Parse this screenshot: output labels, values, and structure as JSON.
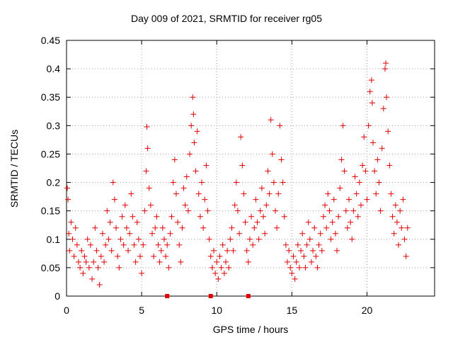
{
  "chart_data": {
    "type": "scatter",
    "title": "Day 009 of 2021, SRMTID for receiver rg05",
    "xlabel": "GPS time / hours",
    "ylabel": "SRMTID / TECUs",
    "xlim": [
      0,
      24.5
    ],
    "ylim": [
      0,
      0.45
    ],
    "xticks": [
      0,
      5,
      10,
      15,
      20
    ],
    "xtick_labels": [
      "0",
      "5",
      "10",
      "15",
      "20"
    ],
    "yticks": [
      0,
      0.05,
      0.1,
      0.15,
      0.2,
      0.25,
      0.3,
      0.35,
      0.4,
      0.45
    ],
    "ytick_labels": [
      "0",
      "0.05",
      "0.1",
      "0.15",
      "0.2",
      "0.25",
      "0.3",
      "0.35",
      "0.4",
      "0.45"
    ],
    "grid": true,
    "marker": "+",
    "color": "#e00000",
    "series": [
      {
        "name": "SRMTID",
        "points": [
          [
            0.05,
            0.19
          ],
          [
            0.1,
            0.17
          ],
          [
            0.15,
            0.11
          ],
          [
            0.2,
            0.08
          ],
          [
            0.3,
            0.13
          ],
          [
            0.4,
            0.1
          ],
          [
            0.5,
            0.07
          ],
          [
            0.6,
            0.12
          ],
          [
            0.7,
            0.09
          ],
          [
            0.8,
            0.06
          ],
          [
            0.9,
            0.05
          ],
          [
            1.0,
            0.08
          ],
          [
            1.1,
            0.04
          ],
          [
            1.2,
            0.07
          ],
          [
            1.3,
            0.06
          ],
          [
            1.4,
            0.1
          ],
          [
            1.5,
            0.05
          ],
          [
            1.6,
            0.09
          ],
          [
            1.7,
            0.03
          ],
          [
            1.8,
            0.06
          ],
          [
            1.9,
            0.12
          ],
          [
            2.0,
            0.08
          ],
          [
            2.1,
            0.05
          ],
          [
            2.2,
            0.02
          ],
          [
            2.3,
            0.07
          ],
          [
            2.4,
            0.11
          ],
          [
            2.5,
            0.06
          ],
          [
            2.6,
            0.09
          ],
          [
            2.7,
            0.15
          ],
          [
            2.8,
            0.1
          ],
          [
            2.9,
            0.13
          ],
          [
            3.0,
            0.08
          ],
          [
            3.1,
            0.2
          ],
          [
            3.2,
            0.17
          ],
          [
            3.3,
            0.12
          ],
          [
            3.4,
            0.07
          ],
          [
            3.5,
            0.05
          ],
          [
            3.6,
            0.1
          ],
          [
            3.7,
            0.14
          ],
          [
            3.8,
            0.09
          ],
          [
            3.9,
            0.16
          ],
          [
            4.0,
            0.12
          ],
          [
            4.1,
            0.08
          ],
          [
            4.2,
            0.11
          ],
          [
            4.3,
            0.18
          ],
          [
            4.4,
            0.14
          ],
          [
            4.5,
            0.09
          ],
          [
            4.6,
            0.06
          ],
          [
            4.7,
            0.13
          ],
          [
            4.8,
            0.1
          ],
          [
            4.9,
            0.07
          ],
          [
            5.0,
            0.04
          ],
          [
            5.1,
            0.09
          ],
          [
            5.2,
            0.15
          ],
          [
            5.3,
            0.22
          ],
          [
            5.35,
            0.298
          ],
          [
            5.4,
            0.26
          ],
          [
            5.5,
            0.19
          ],
          [
            5.6,
            0.16
          ],
          [
            5.7,
            0.11
          ],
          [
            5.8,
            0.07
          ],
          [
            5.9,
            0.12
          ],
          [
            6.0,
            0.14
          ],
          [
            6.1,
            0.09
          ],
          [
            6.2,
            0.06
          ],
          [
            6.3,
            0.08
          ],
          [
            6.4,
            0.12
          ],
          [
            6.5,
            0.1
          ],
          [
            6.6,
            0.07
          ],
          [
            6.7,
            0.09
          ],
          [
            6.8,
            0.05
          ],
          [
            6.9,
            0.11
          ],
          [
            7.0,
            0.14
          ],
          [
            7.1,
            0.2
          ],
          [
            7.2,
            0.24
          ],
          [
            7.3,
            0.18
          ],
          [
            7.4,
            0.13
          ],
          [
            7.5,
            0.09
          ],
          [
            7.6,
            0.06
          ],
          [
            7.7,
            0.12
          ],
          [
            7.8,
            0.19
          ],
          [
            7.9,
            0.16
          ],
          [
            8.0,
            0.21
          ],
          [
            8.1,
            0.15
          ],
          [
            8.2,
            0.25
          ],
          [
            8.3,
            0.3
          ],
          [
            8.4,
            0.35
          ],
          [
            8.45,
            0.32
          ],
          [
            8.5,
            0.27
          ],
          [
            8.6,
            0.22
          ],
          [
            8.7,
            0.29
          ],
          [
            8.8,
            0.18
          ],
          [
            8.9,
            0.14
          ],
          [
            9.0,
            0.2
          ],
          [
            9.1,
            0.12
          ],
          [
            9.2,
            0.17
          ],
          [
            9.3,
            0.23
          ],
          [
            9.4,
            0.15
          ],
          [
            9.5,
            0.1
          ],
          [
            9.6,
            0.07
          ],
          [
            9.7,
            0.05
          ],
          [
            9.8,
            0.08
          ],
          [
            9.9,
            0.04
          ],
          [
            10.0,
            0.06
          ],
          [
            10.1,
            0.03
          ],
          [
            10.2,
            0.07
          ],
          [
            10.3,
            0.05
          ],
          [
            10.4,
            0.09
          ],
          [
            10.5,
            0.04
          ],
          [
            10.6,
            0.06
          ],
          [
            10.7,
            0.08
          ],
          [
            10.8,
            0.05
          ],
          [
            10.9,
            0.1
          ],
          [
            11.0,
            0.12
          ],
          [
            11.1,
            0.08
          ],
          [
            11.2,
            0.16
          ],
          [
            11.3,
            0.2
          ],
          [
            11.4,
            0.15
          ],
          [
            11.5,
            0.11
          ],
          [
            11.6,
            0.28
          ],
          [
            11.7,
            0.23
          ],
          [
            11.8,
            0.18
          ],
          [
            11.9,
            0.13
          ],
          [
            12.0,
            0.08
          ],
          [
            12.1,
            0.06
          ],
          [
            12.2,
            0.1
          ],
          [
            12.3,
            0.14
          ],
          [
            12.4,
            0.09
          ],
          [
            12.5,
            0.12
          ],
          [
            12.6,
            0.17
          ],
          [
            12.7,
            0.13
          ],
          [
            12.8,
            0.1
          ],
          [
            12.9,
            0.15
          ],
          [
            13.0,
            0.19
          ],
          [
            13.1,
            0.14
          ],
          [
            13.2,
            0.11
          ],
          [
            13.3,
            0.16
          ],
          [
            13.4,
            0.22
          ],
          [
            13.5,
            0.18
          ],
          [
            13.6,
            0.31
          ],
          [
            13.7,
            0.25
          ],
          [
            13.8,
            0.2
          ],
          [
            13.9,
            0.15
          ],
          [
            14.0,
            0.12
          ],
          [
            14.1,
            0.18
          ],
          [
            14.2,
            0.3
          ],
          [
            14.3,
            0.24
          ],
          [
            14.4,
            0.2
          ],
          [
            14.5,
            0.14
          ],
          [
            14.6,
            0.09
          ],
          [
            14.7,
            0.06
          ],
          [
            14.8,
            0.08
          ],
          [
            14.9,
            0.05
          ],
          [
            15.0,
            0.04
          ],
          [
            15.1,
            0.07
          ],
          [
            15.2,
            0.03
          ],
          [
            15.3,
            0.06
          ],
          [
            15.4,
            0.09
          ],
          [
            15.5,
            0.05
          ],
          [
            15.6,
            0.08
          ],
          [
            15.7,
            0.11
          ],
          [
            15.8,
            0.07
          ],
          [
            15.9,
            0.05
          ],
          [
            16.0,
            0.09
          ],
          [
            16.1,
            0.13
          ],
          [
            16.2,
            0.1
          ],
          [
            16.3,
            0.06
          ],
          [
            16.4,
            0.08
          ],
          [
            16.5,
            0.12
          ],
          [
            16.6,
            0.07
          ],
          [
            16.7,
            0.05
          ],
          [
            16.8,
            0.09
          ],
          [
            16.9,
            0.11
          ],
          [
            17.0,
            0.08
          ],
          [
            17.1,
            0.14
          ],
          [
            17.2,
            0.16
          ],
          [
            17.3,
            0.12
          ],
          [
            17.4,
            0.18
          ],
          [
            17.5,
            0.15
          ],
          [
            17.6,
            0.1
          ],
          [
            17.7,
            0.13
          ],
          [
            17.8,
            0.17
          ],
          [
            17.9,
            0.11
          ],
          [
            18.0,
            0.08
          ],
          [
            18.1,
            0.14
          ],
          [
            18.2,
            0.19
          ],
          [
            18.3,
            0.24
          ],
          [
            18.4,
            0.3
          ],
          [
            18.5,
            0.22
          ],
          [
            18.6,
            0.15
          ],
          [
            18.7,
            0.12
          ],
          [
            18.8,
            0.17
          ],
          [
            18.9,
            0.13
          ],
          [
            19.0,
            0.1
          ],
          [
            19.1,
            0.15
          ],
          [
            19.2,
            0.21
          ],
          [
            19.3,
            0.18
          ],
          [
            19.4,
            0.14
          ],
          [
            19.5,
            0.2
          ],
          [
            19.6,
            0.16
          ],
          [
            19.7,
            0.23
          ],
          [
            19.8,
            0.28
          ],
          [
            19.9,
            0.22
          ],
          [
            20.0,
            0.17
          ],
          [
            20.1,
            0.3
          ],
          [
            20.2,
            0.36
          ],
          [
            20.3,
            0.38
          ],
          [
            20.35,
            0.34
          ],
          [
            20.4,
            0.27
          ],
          [
            20.5,
            0.22
          ],
          [
            20.6,
            0.18
          ],
          [
            20.7,
            0.24
          ],
          [
            20.8,
            0.2
          ],
          [
            20.9,
            0.15
          ],
          [
            21.0,
            0.26
          ],
          [
            21.1,
            0.33
          ],
          [
            21.2,
            0.4
          ],
          [
            21.25,
            0.41
          ],
          [
            21.3,
            0.35
          ],
          [
            21.4,
            0.29
          ],
          [
            21.5,
            0.23
          ],
          [
            21.6,
            0.18
          ],
          [
            21.7,
            0.14
          ],
          [
            21.8,
            0.11
          ],
          [
            21.9,
            0.16
          ],
          [
            22.0,
            0.13
          ],
          [
            22.1,
            0.09
          ],
          [
            22.2,
            0.15
          ],
          [
            22.3,
            0.12
          ],
          [
            22.4,
            0.17
          ],
          [
            22.5,
            0.1
          ],
          [
            22.6,
            0.07
          ],
          [
            22.7,
            0.12
          ]
        ]
      },
      {
        "name": "zero-markers",
        "marker": "square",
        "points": [
          [
            6.7,
            0
          ],
          [
            9.6,
            0
          ],
          [
            12.1,
            0
          ]
        ]
      }
    ]
  }
}
